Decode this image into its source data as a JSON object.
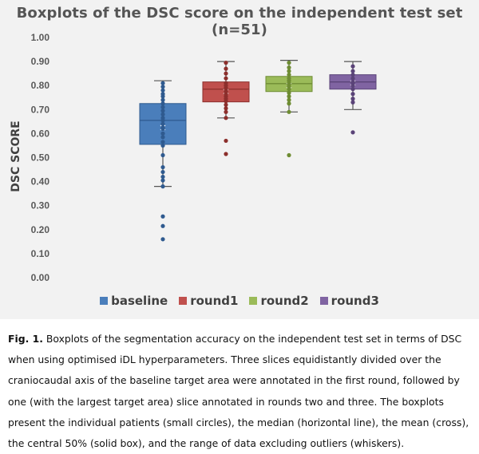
{
  "chart_data": {
    "type": "boxplot",
    "title": "Boxplots of the DSC score on the independent test set (n=51)",
    "ylabel": "DSC SCORE",
    "xlabel": "",
    "ylim": [
      0,
      1
    ],
    "yticks": [
      "0.00",
      "0.10",
      "0.20",
      "0.30",
      "0.40",
      "0.50",
      "0.60",
      "0.70",
      "0.80",
      "0.90",
      "1.00"
    ],
    "grid": false,
    "legend_position": "bottom",
    "series": [
      {
        "name": "baseline",
        "color": "#4a7ebb",
        "stroke": "#2f5a8f",
        "whisker_low": 0.38,
        "q1": 0.555,
        "median": 0.655,
        "q3": 0.725,
        "whisker_high": 0.82,
        "mean": 0.625,
        "points": [
          0.16,
          0.215,
          0.255,
          0.38,
          0.405,
          0.42,
          0.44,
          0.46,
          0.51,
          0.55,
          0.565,
          0.585,
          0.6,
          0.62,
          0.625,
          0.64,
          0.655,
          0.665,
          0.68,
          0.695,
          0.71,
          0.725,
          0.74,
          0.755,
          0.765,
          0.78,
          0.795,
          0.81
        ]
      },
      {
        "name": "round1",
        "color": "#c0504d",
        "stroke": "#8c2f2c",
        "whisker_low": 0.665,
        "q1": 0.732,
        "median": 0.785,
        "q3": 0.815,
        "whisker_high": 0.9,
        "mean": 0.775,
        "points": [
          0.515,
          0.57,
          0.665,
          0.69,
          0.705,
          0.72,
          0.735,
          0.745,
          0.755,
          0.765,
          0.775,
          0.785,
          0.79,
          0.8,
          0.81,
          0.83,
          0.85,
          0.87,
          0.895
        ]
      },
      {
        "name": "round2",
        "color": "#9bbb59",
        "stroke": "#6e8c33",
        "whisker_low": 0.69,
        "q1": 0.775,
        "median": 0.808,
        "q3": 0.838,
        "whisker_high": 0.905,
        "mean": 0.8,
        "points": [
          0.51,
          0.69,
          0.725,
          0.74,
          0.755,
          0.77,
          0.785,
          0.795,
          0.805,
          0.81,
          0.82,
          0.83,
          0.845,
          0.86,
          0.875,
          0.895
        ]
      },
      {
        "name": "round3",
        "color": "#8064a2",
        "stroke": "#5a4378",
        "whisker_low": 0.7,
        "q1": 0.785,
        "median": 0.815,
        "q3": 0.845,
        "whisker_high": 0.9,
        "mean": 0.81,
        "points": [
          0.605,
          0.73,
          0.745,
          0.765,
          0.785,
          0.8,
          0.81,
          0.815,
          0.83,
          0.845,
          0.86,
          0.88
        ]
      }
    ]
  },
  "caption": {
    "label": "Fig. 1.",
    "text": " Boxplots of the segmentation accuracy on the independent test set in terms of DSC when using optimised iDL hyperparameters. Three slices equidistantly divided over the craniocaudal axis of the baseline target area were annotated in the first round, followed by one (with the largest target area) slice annotated in rounds two and three. The boxplots present the individual patients (small circles), the median (horizontal line), the mean (cross), the central 50% (solid box), and the range of data excluding outliers (whiskers)."
  }
}
